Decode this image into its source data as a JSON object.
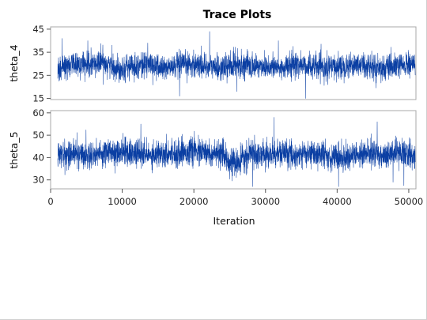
{
  "chart_data": {
    "type": "line",
    "title": "Trace Plots",
    "xlabel": "Iteration",
    "xlim": [
      0,
      51000
    ],
    "x_ticks": [
      0,
      10000,
      20000,
      30000,
      40000,
      50000
    ],
    "x_range_data": [
      1000,
      50900
    ],
    "line_color": "#0b3fa3",
    "panels": [
      {
        "ylabel": "theta_4",
        "ylim": [
          14.5,
          46
        ],
        "y_ticks": [
          15,
          25,
          35,
          45
        ],
        "series": [
          {
            "values": [
              28,
              30,
              29,
              31,
              28,
              29,
              30,
              28,
              29,
              30,
              29,
              28,
              30,
              29,
              29,
              28,
              30,
              29,
              28,
              29,
              30,
              29,
              28,
              29,
              30
            ]
          }
        ],
        "spikes": [
          {
            "x": 1600,
            "y": 41
          },
          {
            "x": 22200,
            "y": 44
          },
          {
            "x": 18000,
            "y": 16
          },
          {
            "x": 35600,
            "y": 15
          },
          {
            "x": 5200,
            "y": 40
          },
          {
            "x": 31800,
            "y": 40
          },
          {
            "x": 26000,
            "y": 18
          }
        ]
      },
      {
        "ylabel": "theta_5",
        "ylim": [
          26,
          61
        ],
        "y_ticks": [
          30,
          40,
          50,
          60
        ],
        "series": [
          {
            "values": [
              41,
              42,
              41,
              42,
              43,
              42,
              41,
              42,
              42,
              43,
              42,
              41,
              37,
              42,
              41,
              42,
              41,
              42,
              41,
              40,
              41,
              42,
              41,
              42,
              41
            ]
          }
        ],
        "spikes": [
          {
            "x": 31200,
            "y": 58
          },
          {
            "x": 45600,
            "y": 56
          },
          {
            "x": 12600,
            "y": 55
          },
          {
            "x": 40200,
            "y": 27
          },
          {
            "x": 28200,
            "y": 27
          },
          {
            "x": 9000,
            "y": 33
          },
          {
            "x": 47800,
            "y": 29
          }
        ]
      }
    ]
  }
}
